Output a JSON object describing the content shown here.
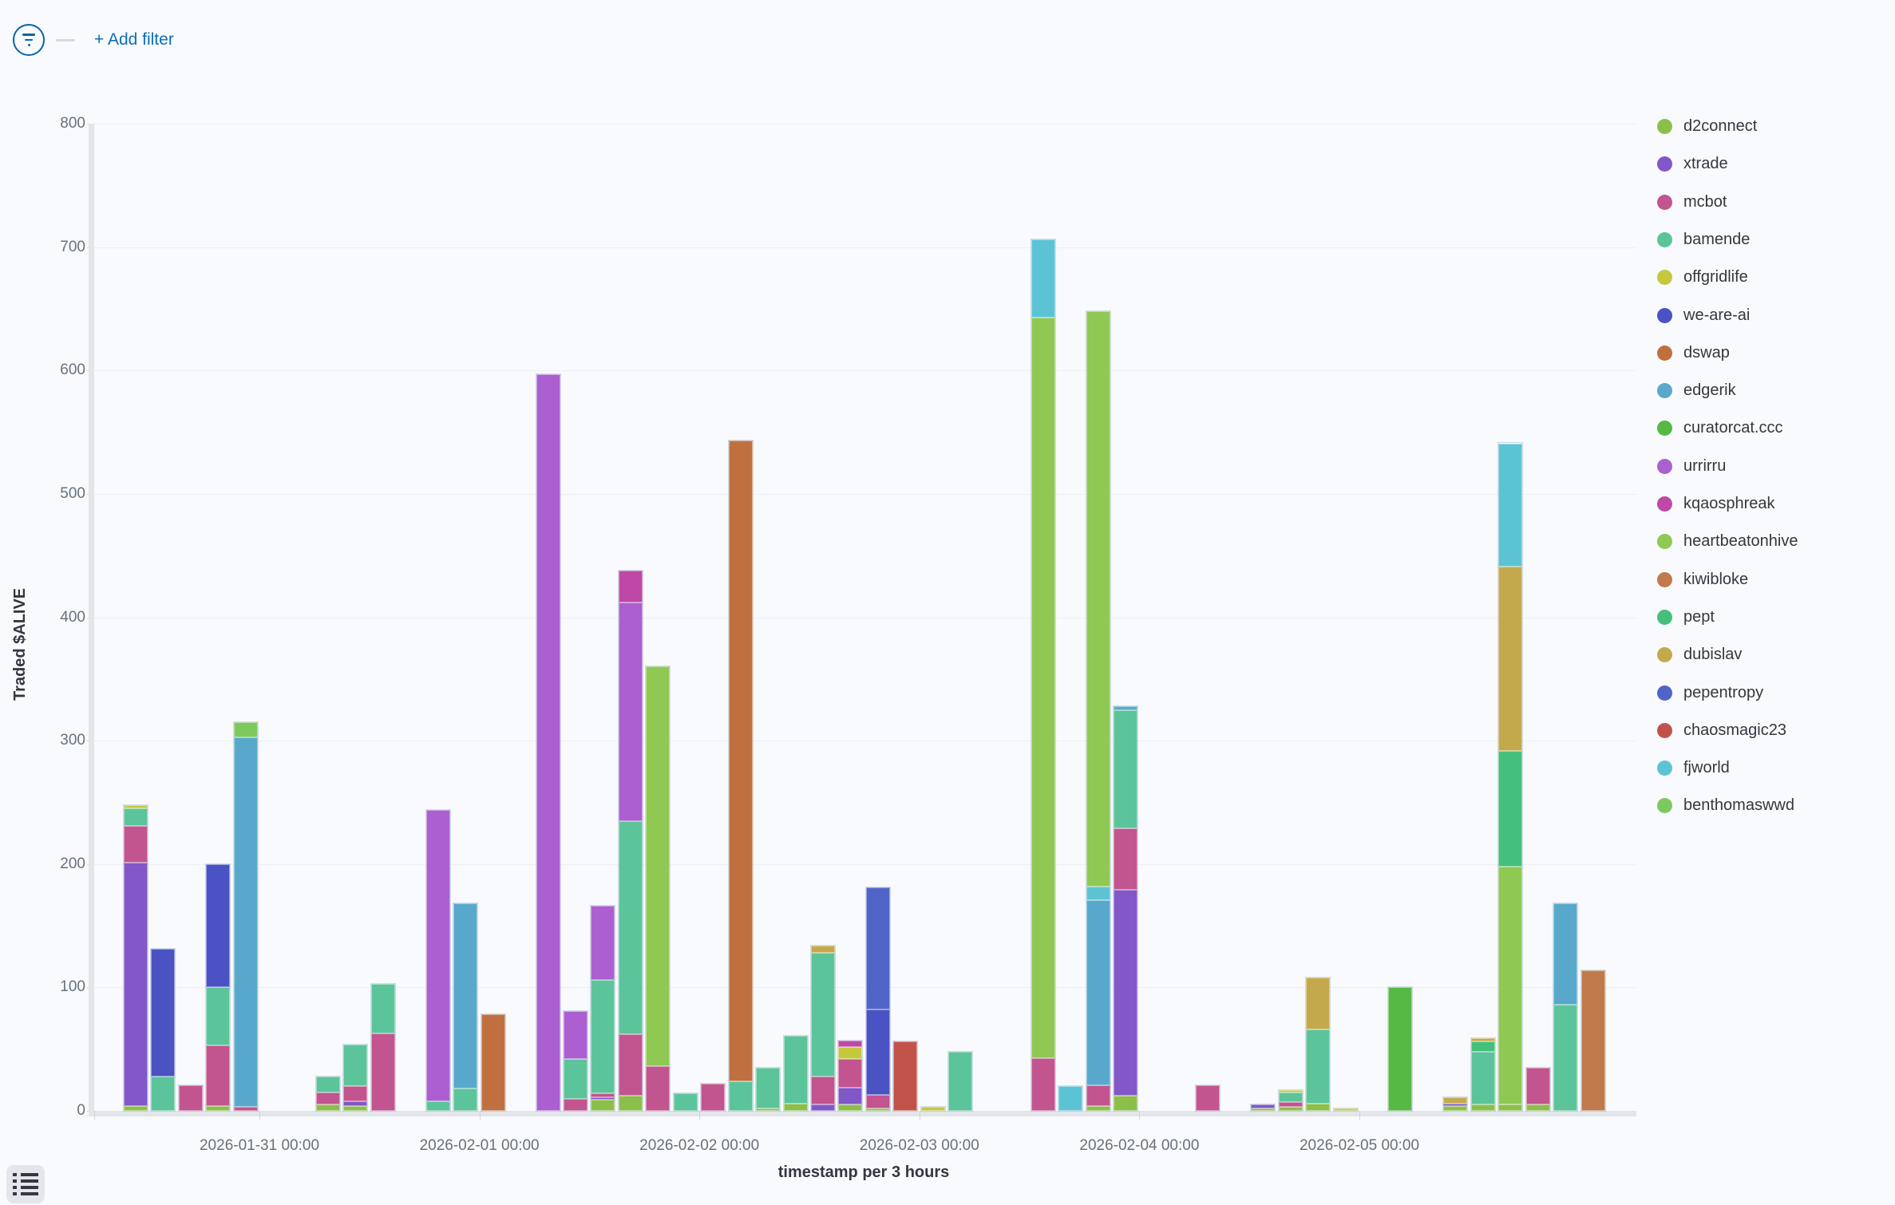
{
  "toolbar": {
    "add_filter_label": "+ Add filter",
    "filter_icon": "filter-icon"
  },
  "legend_toggle_icon": "list-icon",
  "chart_data": {
    "type": "bar",
    "stacked": true,
    "xlabel": "timestamp per 3 hours",
    "ylabel": "Traded $ALIVE",
    "ylim": [
      0,
      800
    ],
    "yticks": [
      0,
      100,
      200,
      300,
      400,
      500,
      600,
      700,
      800
    ],
    "grid": true,
    "legend_position": "right",
    "series_colors": {
      "d2connect": "#8cbf4a",
      "xtrade": "#8257c8",
      "mcbot": "#c2548f",
      "bamende": "#5bc49a",
      "offgridlife": "#c3c83d",
      "we-are-ai": "#4a52c4",
      "dswap": "#c0703f",
      "edgerik": "#58a8cc",
      "curatorcat.ccc": "#55b944",
      "urrirru": "#ab5fd0",
      "kqaosphreak": "#bf47a5",
      "heartbeatonhive": "#8fc852",
      "kiwibloke": "#c07a4b",
      "pept": "#45c07b",
      "dubislav": "#c4a94c",
      "pepentropy": "#5064c8",
      "chaosmagic23": "#c1524a",
      "fjworld": "#5cc3d4",
      "benthomaswwd": "#7dc95e"
    },
    "legend": [
      "d2connect",
      "xtrade",
      "mcbot",
      "bamende",
      "offgridlife",
      "we-are-ai",
      "dswap",
      "edgerik",
      "curatorcat.ccc",
      "urrirru",
      "kqaosphreak",
      "heartbeatonhive",
      "kiwibloke",
      "pept",
      "dubislav",
      "pepentropy",
      "chaosmagic23",
      "fjworld",
      "benthomaswwd"
    ],
    "x_day_ticks": [
      {
        "label": "2026-01-31 00:00",
        "slot": 5
      },
      {
        "label": "2026-02-01 00:00",
        "slot": 13
      },
      {
        "label": "2026-02-02 00:00",
        "slot": 21
      },
      {
        "label": "2026-02-03 00:00",
        "slot": 29
      },
      {
        "label": "2026-02-04 00:00",
        "slot": 37
      },
      {
        "label": "2026-02-05 00:00",
        "slot": 45
      }
    ],
    "slot_hours": 3,
    "timeline_start": "2026-01-30 09:00",
    "bars": [
      {
        "slot": 0,
        "time": "2026-01-30 09:00",
        "segments": [
          [
            "d2connect",
            4
          ],
          [
            "xtrade",
            197
          ],
          [
            "mcbot",
            30
          ],
          [
            "bamende",
            14
          ],
          [
            "offgridlife",
            3
          ]
        ]
      },
      {
        "slot": 1,
        "time": "2026-01-30 12:00",
        "segments": [
          [
            "bamende",
            28
          ],
          [
            "we-are-ai",
            103
          ]
        ]
      },
      {
        "slot": 2,
        "time": "2026-01-30 15:00",
        "segments": [
          [
            "mcbot",
            21
          ]
        ]
      },
      {
        "slot": 3,
        "time": "2026-01-30 18:00",
        "segments": [
          [
            "d2connect",
            4
          ],
          [
            "mcbot",
            49
          ],
          [
            "bamende",
            47
          ],
          [
            "we-are-ai",
            100
          ]
        ]
      },
      {
        "slot": 4,
        "time": "2026-01-30 21:00",
        "segments": [
          [
            "mcbot",
            3
          ],
          [
            "edgerik",
            300
          ],
          [
            "benthomaswwd",
            12
          ]
        ]
      },
      {
        "slot": 7,
        "time": "2026-01-31 06:00",
        "segments": [
          [
            "d2connect",
            5
          ],
          [
            "mcbot",
            10
          ],
          [
            "bamende",
            13
          ]
        ]
      },
      {
        "slot": 8,
        "time": "2026-01-31 09:00",
        "segments": [
          [
            "d2connect",
            4
          ],
          [
            "xtrade",
            4
          ],
          [
            "mcbot",
            12
          ],
          [
            "bamende",
            34
          ]
        ]
      },
      {
        "slot": 9,
        "time": "2026-01-31 12:00",
        "segments": [
          [
            "mcbot",
            63
          ],
          [
            "bamende",
            40
          ]
        ]
      },
      {
        "slot": 11,
        "time": "2026-01-31 18:00",
        "segments": [
          [
            "bamende",
            8
          ],
          [
            "urrirru",
            236
          ]
        ]
      },
      {
        "slot": 12,
        "time": "2026-01-31 21:00",
        "segments": [
          [
            "bamende",
            18
          ],
          [
            "edgerik",
            150
          ]
        ]
      },
      {
        "slot": 13,
        "time": "2026-02-01 00:00",
        "segments": [
          [
            "dswap",
            78
          ]
        ]
      },
      {
        "slot": 15,
        "time": "2026-02-01 06:00",
        "segments": [
          [
            "urrirru",
            597
          ]
        ]
      },
      {
        "slot": 16,
        "time": "2026-02-01 09:00",
        "segments": [
          [
            "mcbot",
            10
          ],
          [
            "bamende",
            32
          ],
          [
            "urrirru",
            39
          ]
        ]
      },
      {
        "slot": 17,
        "time": "2026-02-01 12:00",
        "segments": [
          [
            "d2connect",
            9
          ],
          [
            "xtrade",
            2
          ],
          [
            "mcbot",
            3
          ],
          [
            "bamende",
            92
          ],
          [
            "urrirru",
            60
          ]
        ]
      },
      {
        "slot": 18,
        "time": "2026-02-01 15:00",
        "segments": [
          [
            "d2connect",
            12
          ],
          [
            "mcbot",
            50
          ],
          [
            "bamende",
            173
          ],
          [
            "urrirru",
            177
          ],
          [
            "kqaosphreak",
            26
          ]
        ]
      },
      {
        "slot": 19,
        "time": "2026-02-01 18:00",
        "segments": [
          [
            "mcbot",
            36
          ],
          [
            "heartbeatonhive",
            324
          ]
        ]
      },
      {
        "slot": 20,
        "time": "2026-02-01 21:00",
        "segments": [
          [
            "bamende",
            14
          ]
        ]
      },
      {
        "slot": 21,
        "time": "2026-02-02 00:00",
        "segments": [
          [
            "mcbot",
            22
          ]
        ]
      },
      {
        "slot": 22,
        "time": "2026-02-02 03:00",
        "segments": [
          [
            "bamende",
            24
          ],
          [
            "dswap",
            519
          ]
        ]
      },
      {
        "slot": 23,
        "time": "2026-02-02 06:00",
        "segments": [
          [
            "d2connect",
            2
          ],
          [
            "bamende",
            33
          ]
        ]
      },
      {
        "slot": 24,
        "time": "2026-02-02 09:00",
        "segments": [
          [
            "d2connect",
            6
          ],
          [
            "bamende",
            55
          ]
        ]
      },
      {
        "slot": 25,
        "time": "2026-02-02 12:00",
        "segments": [
          [
            "xtrade",
            5
          ],
          [
            "mcbot",
            23
          ],
          [
            "bamende",
            100
          ],
          [
            "dubislav",
            6
          ]
        ]
      },
      {
        "slot": 26,
        "time": "2026-02-02 15:00",
        "segments": [
          [
            "d2connect",
            5
          ],
          [
            "xtrade",
            14
          ],
          [
            "mcbot",
            23
          ],
          [
            "offgridlife",
            10
          ],
          [
            "kqaosphreak",
            5
          ]
        ]
      },
      {
        "slot": 27,
        "time": "2026-02-02 18:00",
        "segments": [
          [
            "d2connect",
            2
          ],
          [
            "mcbot",
            11
          ],
          [
            "we-are-ai",
            69
          ],
          [
            "pepentropy",
            99
          ]
        ]
      },
      {
        "slot": 28,
        "time": "2026-02-02 21:00",
        "segments": [
          [
            "chaosmagic23",
            56
          ]
        ]
      },
      {
        "slot": 29,
        "time": "2026-02-03 00:00",
        "segments": [
          [
            "offgridlife",
            3
          ]
        ]
      },
      {
        "slot": 30,
        "time": "2026-02-03 03:00",
        "segments": [
          [
            "bamende",
            48
          ]
        ]
      },
      {
        "slot": 33,
        "time": "2026-02-03 12:00",
        "segments": [
          [
            "mcbot",
            43
          ],
          [
            "heartbeatonhive",
            600
          ],
          [
            "fjworld",
            63
          ]
        ]
      },
      {
        "slot": 34,
        "time": "2026-02-03 15:00",
        "segments": [
          [
            "fjworld",
            20
          ]
        ]
      },
      {
        "slot": 35,
        "time": "2026-02-03 18:00",
        "segments": [
          [
            "d2connect",
            4
          ],
          [
            "mcbot",
            17
          ],
          [
            "edgerik",
            150
          ],
          [
            "fjworld",
            11
          ],
          [
            "heartbeatonhive",
            466
          ]
        ]
      },
      {
        "slot": 36,
        "time": "2026-02-03 21:00",
        "segments": [
          [
            "d2connect",
            12
          ],
          [
            "xtrade",
            167
          ],
          [
            "mcbot",
            50
          ],
          [
            "bamende",
            96
          ],
          [
            "edgerik",
            3
          ]
        ]
      },
      {
        "slot": 39,
        "time": "2026-02-04 06:00",
        "segments": [
          [
            "mcbot",
            21
          ]
        ]
      },
      {
        "slot": 41,
        "time": "2026-02-04 12:00",
        "segments": [
          [
            "d2connect",
            2
          ],
          [
            "xtrade",
            3
          ]
        ]
      },
      {
        "slot": 42,
        "time": "2026-02-04 15:00",
        "segments": [
          [
            "d2connect",
            3
          ],
          [
            "mcbot",
            4
          ],
          [
            "bamende",
            8
          ],
          [
            "offgridlife",
            2
          ]
        ]
      },
      {
        "slot": 43,
        "time": "2026-02-04 18:00",
        "segments": [
          [
            "d2connect",
            6
          ],
          [
            "bamende",
            60
          ],
          [
            "dubislav",
            42
          ]
        ]
      },
      {
        "slot": 44,
        "time": "2026-02-04 21:00",
        "segments": [
          [
            "offgridlife",
            2
          ]
        ]
      },
      {
        "slot": 46,
        "time": "2026-02-05 03:00",
        "segments": [
          [
            "curatorcat.ccc",
            100
          ]
        ]
      },
      {
        "slot": 48,
        "time": "2026-02-05 09:00",
        "segments": [
          [
            "d2connect",
            4
          ],
          [
            "xtrade",
            2
          ],
          [
            "dubislav",
            5
          ]
        ]
      },
      {
        "slot": 49,
        "time": "2026-02-05 12:00",
        "segments": [
          [
            "d2connect",
            5
          ],
          [
            "bamende",
            43
          ],
          [
            "pept",
            8
          ],
          [
            "dubislav",
            3
          ]
        ]
      },
      {
        "slot": 50,
        "time": "2026-02-05 15:00",
        "segments": [
          [
            "d2connect",
            5
          ],
          [
            "heartbeatonhive",
            193
          ],
          [
            "pept",
            94
          ],
          [
            "dubislav",
            149
          ],
          [
            "fjworld",
            100
          ]
        ]
      },
      {
        "slot": 51,
        "time": "2026-02-05 18:00",
        "segments": [
          [
            "d2connect",
            5
          ],
          [
            "mcbot",
            30
          ]
        ]
      },
      {
        "slot": 52,
        "time": "2026-02-05 21:00",
        "segments": [
          [
            "bamende",
            86
          ],
          [
            "edgerik",
            82
          ]
        ]
      },
      {
        "slot": 53,
        "time": "2026-02-06 00:00",
        "segments": [
          [
            "kiwibloke",
            114
          ]
        ]
      }
    ]
  }
}
